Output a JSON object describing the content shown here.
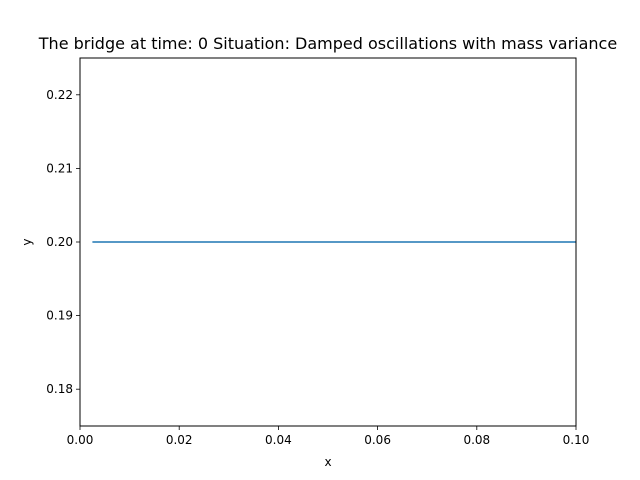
{
  "chart_data": {
    "type": "line",
    "title": "The bridge at time: 0 Situation: Damped oscillations with mass variance",
    "xlabel": "x",
    "ylabel": "y",
    "xlim": [
      0.0,
      0.1
    ],
    "ylim": [
      0.175,
      0.225
    ],
    "xticks": [
      0.0,
      0.02,
      0.04,
      0.06,
      0.08,
      0.1
    ],
    "xtick_labels": [
      "0.00",
      "0.02",
      "0.04",
      "0.06",
      "0.08",
      "0.10"
    ],
    "yticks": [
      0.18,
      0.19,
      0.2,
      0.21,
      0.22
    ],
    "ytick_labels": [
      "0.18",
      "0.19",
      "0.20",
      "0.21",
      "0.22"
    ],
    "grid": false,
    "series": [
      {
        "color": "#1f77b4",
        "x": [
          0.0025,
          0.1
        ],
        "y": [
          0.2,
          0.2
        ]
      }
    ]
  }
}
